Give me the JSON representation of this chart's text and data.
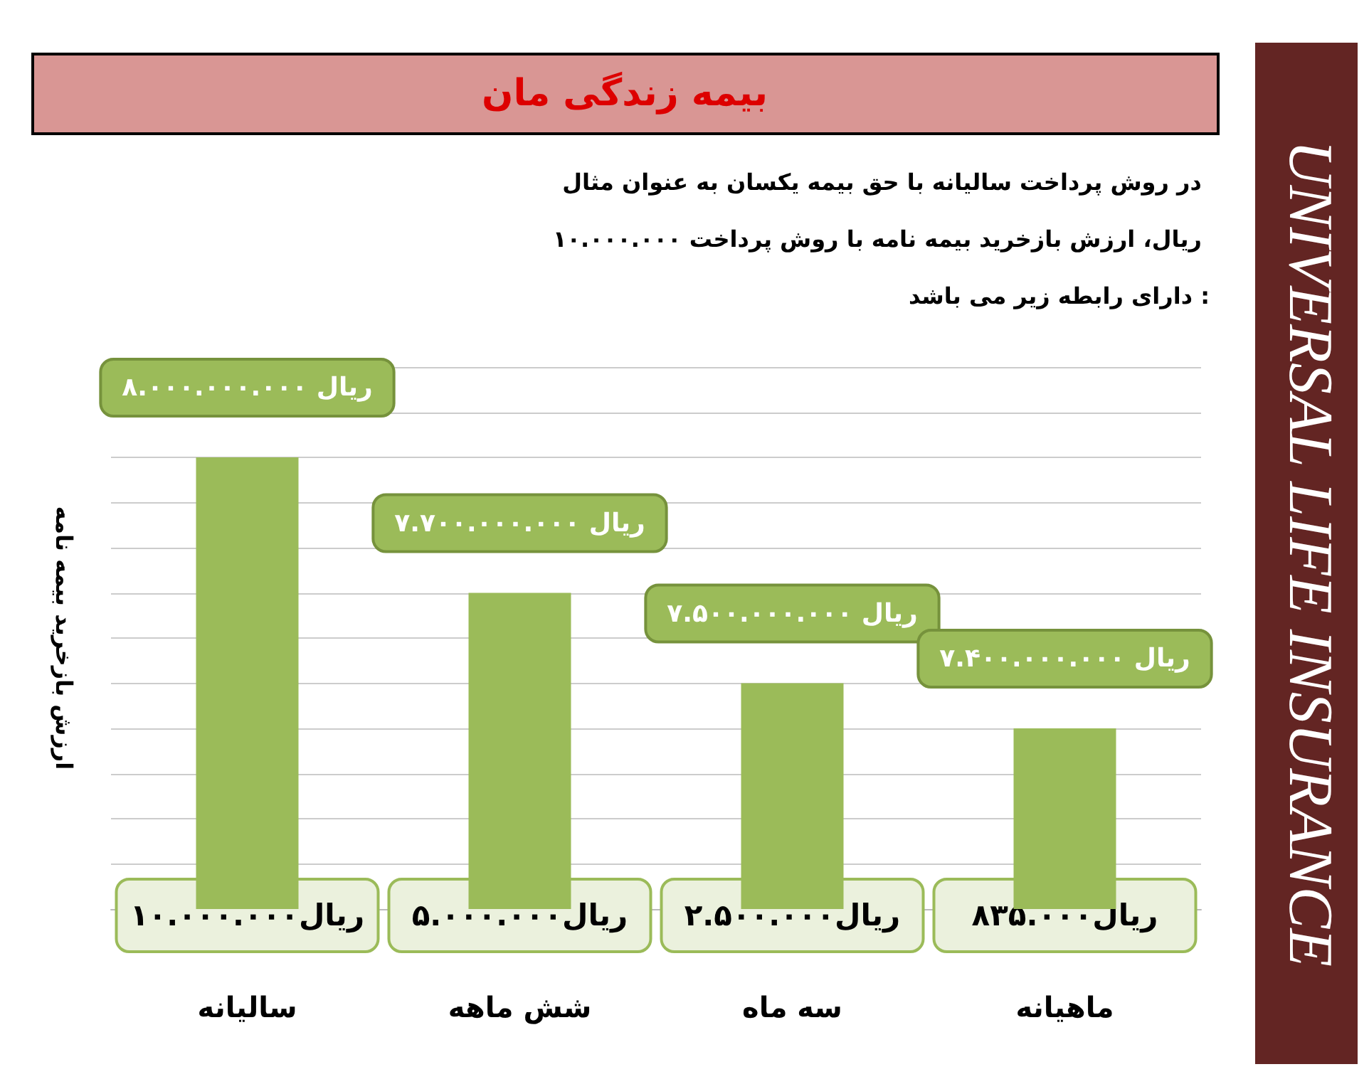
{
  "chart_data": {
    "type": "bar",
    "title": "بیمه زندگی مان",
    "subtitle": "در روش پرداخت سالیانه با حق بیمه یکسان به عنوان مثال ۱۰.۰۰۰.۰۰۰ ریال، ارزش بازخرید بیمه نامه با روش پرداخت دارای رابطه زیر می باشد :",
    "ylabel": "ارزش بازخرید بیمه نامه",
    "categories": [
      "سالیانه",
      "شش ماهه",
      "سه ماه",
      "ماهیانه"
    ],
    "values": [
      8000000000,
      7700000000,
      7500000000,
      7400000000
    ],
    "value_labels": [
      "۸.۰۰۰.۰۰۰.۰۰۰ ریال",
      "۷.۷۰۰.۰۰۰.۰۰۰ ریال",
      "۷.۵۰۰.۰۰۰.۰۰۰ ریال",
      "۷.۴۰۰.۰۰۰.۰۰۰ ریال"
    ],
    "color": "#9bbb59",
    "ylim": [
      7000000000,
      8200000000
    ],
    "yticks": [
      {
        "value": 7000000000,
        "label": null
      },
      {
        "value": 7100000000,
        "label": null
      },
      {
        "value": 7200000000,
        "label": null
      },
      {
        "value": 7300000000,
        "label": null
      },
      {
        "value": 7400000000,
        "label": null
      },
      {
        "value": 7500000000,
        "label": null
      },
      {
        "value": 7600000000,
        "label": null
      },
      {
        "value": 7700000000,
        "label": null
      },
      {
        "value": 7800000000,
        "label": null
      },
      {
        "value": 7900000000,
        "label": null
      },
      {
        "value": 8000000000,
        "label": null
      },
      {
        "value": 8100000000,
        "label": null
      },
      {
        "value": 8200000000,
        "label": null
      }
    ],
    "grid": "y",
    "tick_labels": "x",
    "annotations": [
      {
        "text": "۱۰.۰۰۰.۰۰۰ریال",
        "x": "سالیانه"
      },
      {
        "text": "۵.۰۰۰.۰۰۰ریال",
        "x": "شش ماهه"
      },
      {
        "text": "۲.۵۰۰.۰۰۰ریال",
        "x": "سه ماه"
      },
      {
        "text": "۸۳۵.۰۰۰ریال",
        "x": "ماهیانه"
      },
      "UNIVERSAL LIFE INSURANCE"
    ]
  }
}
